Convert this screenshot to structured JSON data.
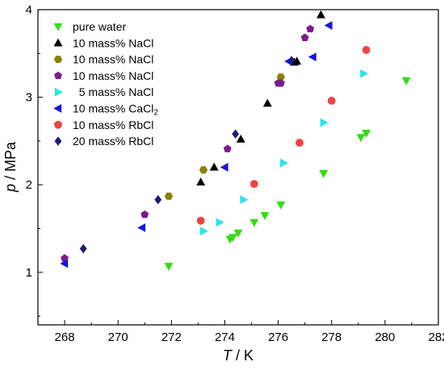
{
  "chart_data": {
    "type": "scatter",
    "title": "",
    "xlabel": {
      "italic": "T",
      "rest": " / K"
    },
    "ylabel": {
      "italic": "p",
      "rest": " / MPa"
    },
    "xlim": [
      267,
      282
    ],
    "ylim": [
      0.4,
      4.0
    ],
    "xticks": [
      268,
      270,
      272,
      274,
      276,
      278,
      280,
      282
    ],
    "yticks": [
      1,
      2,
      3,
      4
    ],
    "grid": false,
    "legend_position": "top-left",
    "series": [
      {
        "name": "pure water",
        "color": "#33dd11",
        "marker": "triangle-down",
        "points": [
          [
            271.9,
            1.07
          ],
          [
            274.2,
            1.38
          ],
          [
            274.3,
            1.4
          ],
          [
            274.5,
            1.45
          ],
          [
            275.1,
            1.57
          ],
          [
            275.5,
            1.65
          ],
          [
            276.1,
            1.77
          ],
          [
            277.7,
            2.13
          ],
          [
            279.1,
            2.54
          ],
          [
            279.3,
            2.59
          ],
          [
            280.8,
            3.19
          ]
        ]
      },
      {
        "name": "10 mass% NaCl",
        "color": "#000000",
        "marker": "triangle-up",
        "points": [
          [
            273.1,
            2.03
          ],
          [
            273.6,
            2.2
          ],
          [
            274.6,
            2.52
          ],
          [
            275.6,
            2.93
          ],
          [
            276.6,
            3.4
          ],
          [
            276.7,
            3.41
          ],
          [
            277.6,
            3.94
          ]
        ]
      },
      {
        "name": "10 mass% NaCl",
        "color": "#8b8000",
        "marker": "hexagon",
        "points": [
          [
            271.9,
            1.87
          ],
          [
            273.2,
            2.17
          ],
          [
            276.1,
            3.23
          ]
        ]
      },
      {
        "name": "10 mass% NaCl",
        "color": "#7d1a8c",
        "marker": "pentagon",
        "points": [
          [
            268.0,
            1.16
          ],
          [
            271.0,
            1.66
          ],
          [
            274.1,
            2.41
          ],
          [
            276.0,
            3.16
          ],
          [
            276.1,
            3.16
          ],
          [
            277.0,
            3.68
          ],
          [
            277.2,
            3.78
          ]
        ]
      },
      {
        "name": "  5 mass% NaCl",
        "color": "#22e6f0",
        "marker": "triangle-right",
        "points": [
          [
            273.2,
            1.47
          ],
          [
            273.8,
            1.57
          ],
          [
            274.7,
            1.83
          ],
          [
            276.2,
            2.25
          ],
          [
            277.7,
            2.71
          ],
          [
            279.2,
            3.27
          ]
        ]
      },
      {
        "name": "10 mass% CaCl",
        "name_sub": "2",
        "color": "#1515e6",
        "marker": "triangle-left",
        "points": [
          [
            268.0,
            1.1
          ],
          [
            270.9,
            1.51
          ],
          [
            274.0,
            2.2
          ],
          [
            276.4,
            3.41
          ],
          [
            277.3,
            3.46
          ],
          [
            277.9,
            3.82
          ]
        ]
      },
      {
        "name": "10 mass% RbCl",
        "color": "#ee4444",
        "marker": "circle",
        "points": [
          [
            273.1,
            1.59
          ],
          [
            275.1,
            2.01
          ],
          [
            276.8,
            2.48
          ],
          [
            278.0,
            2.96
          ],
          [
            279.3,
            3.54
          ]
        ]
      },
      {
        "name": "20 mass% RbCl",
        "color": "#1a1a80",
        "marker": "diamond",
        "points": [
          [
            268.7,
            1.27
          ],
          [
            271.5,
            1.83
          ],
          [
            274.4,
            2.58
          ],
          [
            276.5,
            3.42
          ]
        ]
      }
    ]
  }
}
